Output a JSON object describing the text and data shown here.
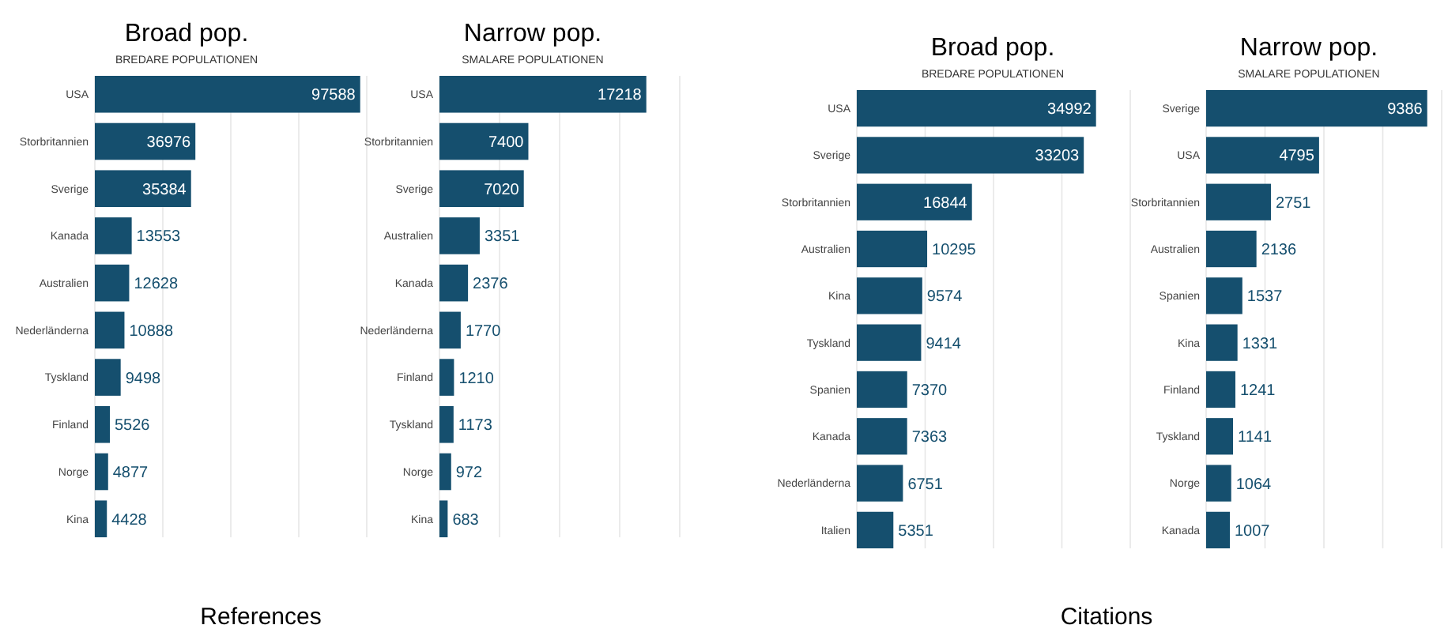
{
  "chart_data": [
    {
      "type": "bar",
      "orientation": "horizontal",
      "title": "Broad pop.",
      "subtitle": "BREDARE POPULATIONEN",
      "categories": [
        "USA",
        "Storbritannien",
        "Sverige",
        "Kanada",
        "Australien",
        "Nederländerna",
        "Tyskland",
        "Finland",
        "Norge",
        "Kina"
      ],
      "values": [
        97588,
        36976,
        35384,
        13553,
        12628,
        10888,
        9498,
        5526,
        4877,
        4428
      ],
      "color": "#154f6e",
      "data_labels": true,
      "xlim": [
        0,
        100000
      ],
      "xticks": [
        {
          "value": 0,
          "label": null
        },
        {
          "value": 25000,
          "label": null
        },
        {
          "value": 50000,
          "label": null
        },
        {
          "value": 75000,
          "label": null
        },
        {
          "value": 100000,
          "label": null
        }
      ],
      "grid": "x",
      "tick_labels": "y",
      "annotations": [
        "References"
      ]
    },
    {
      "type": "bar",
      "orientation": "horizontal",
      "title": "Narrow pop.",
      "subtitle": "SMALARE POPULATIONEN",
      "categories": [
        "USA",
        "Storbritannien",
        "Sverige",
        "Australien",
        "Kanada",
        "Nederländerna",
        "Finland",
        "Tyskland",
        "Norge",
        "Kina"
      ],
      "values": [
        17218,
        7400,
        7020,
        3351,
        2376,
        1770,
        1210,
        1173,
        972,
        683
      ],
      "color": "#154f6e",
      "data_labels": true,
      "xlim": [
        0,
        20000
      ],
      "xticks": [
        {
          "value": 0,
          "label": null
        },
        {
          "value": 5000,
          "label": null
        },
        {
          "value": 10000,
          "label": null
        },
        {
          "value": 15000,
          "label": null
        },
        {
          "value": 20000,
          "label": null
        }
      ],
      "grid": "x",
      "tick_labels": "y"
    },
    {
      "type": "bar",
      "orientation": "horizontal",
      "title": "Broad pop.",
      "subtitle": "BREDARE POPULATIONEN",
      "categories": [
        "USA",
        "Sverige",
        "Storbritannien",
        "Australien",
        "Kina",
        "Tyskland",
        "Spanien",
        "Kanada",
        "Nederländerna",
        "Italien"
      ],
      "values": [
        34992,
        33203,
        16844,
        10295,
        9574,
        9414,
        7370,
        7363,
        6751,
        5351
      ],
      "color": "#154f6e",
      "data_labels": true,
      "xlim": [
        0,
        40000
      ],
      "xticks": [
        {
          "value": 0,
          "label": null
        },
        {
          "value": 10000,
          "label": null
        },
        {
          "value": 20000,
          "label": null
        },
        {
          "value": 30000,
          "label": null
        },
        {
          "value": 40000,
          "label": null
        }
      ],
      "grid": "x",
      "tick_labels": "y",
      "annotations": [
        "Citations"
      ]
    },
    {
      "type": "bar",
      "orientation": "horizontal",
      "title": "Narrow pop.",
      "subtitle": "SMALARE POPULATIONEN",
      "categories": [
        "Sverige",
        "USA",
        "Storbritannien",
        "Australien",
        "Spanien",
        "Kina",
        "Finland",
        "Tyskland",
        "Norge",
        "Kanada"
      ],
      "values": [
        9386,
        4795,
        2751,
        2136,
        1537,
        1331,
        1241,
        1141,
        1064,
        1007
      ],
      "color": "#154f6e",
      "data_labels": true,
      "xlim": [
        0,
        10000
      ],
      "xticks": [
        {
          "value": 0,
          "label": null
        },
        {
          "value": 2500,
          "label": null
        },
        {
          "value": 5000,
          "label": null
        },
        {
          "value": 7500,
          "label": null
        },
        {
          "value": 10000,
          "label": null
        }
      ],
      "grid": "x",
      "tick_labels": "y"
    }
  ]
}
